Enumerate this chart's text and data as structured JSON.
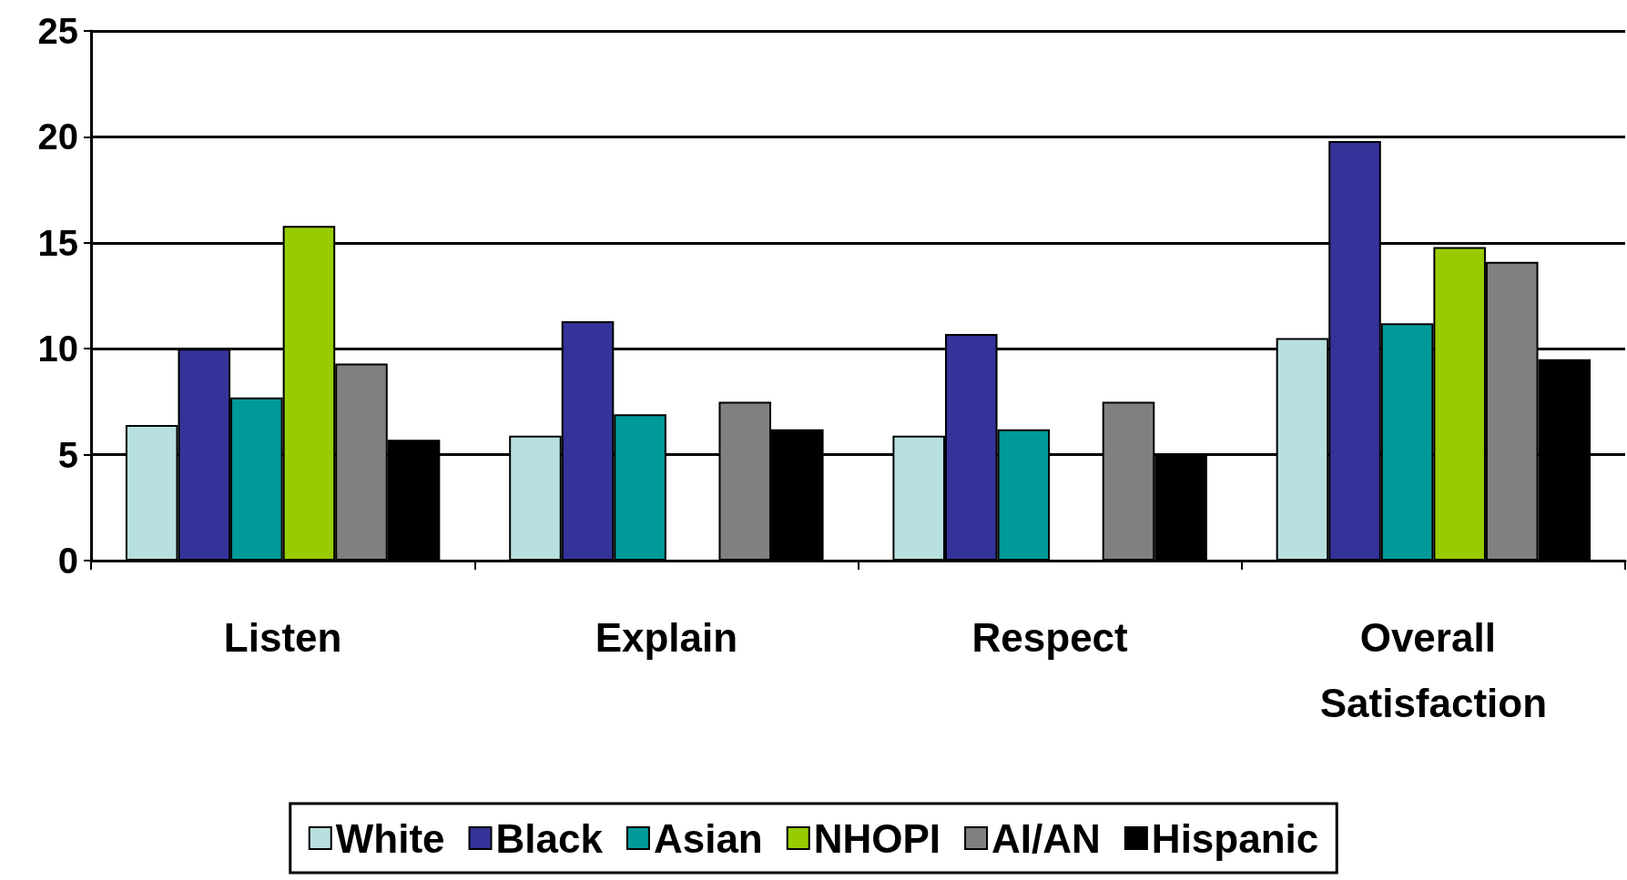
{
  "chart_data": {
    "type": "bar",
    "categories": [
      "Listen",
      "Explain",
      "Respect",
      "Overall Satisfaction"
    ],
    "series": [
      {
        "name": "White",
        "color": "#b8e0e0",
        "values": [
          6.4,
          5.9,
          5.9,
          10.5
        ]
      },
      {
        "name": "Black",
        "color": "#333399",
        "values": [
          10.0,
          11.3,
          10.7,
          19.8
        ]
      },
      {
        "name": "Asian",
        "color": "#009999",
        "values": [
          7.7,
          6.9,
          6.2,
          11.2
        ]
      },
      {
        "name": "NHOPI",
        "color": "#99cc00",
        "values": [
          15.8,
          null,
          null,
          14.8
        ]
      },
      {
        "name": "AI/AN",
        "color": "#808080",
        "values": [
          9.3,
          7.5,
          7.5,
          14.1
        ]
      },
      {
        "name": "Hispanic",
        "color": "#000000",
        "values": [
          5.7,
          6.2,
          5.0,
          9.5
        ]
      }
    ],
    "ylim": [
      0,
      25
    ],
    "yticks": [
      0,
      5,
      10,
      15,
      20,
      25
    ],
    "grid": "y",
    "legend": "bottom"
  }
}
